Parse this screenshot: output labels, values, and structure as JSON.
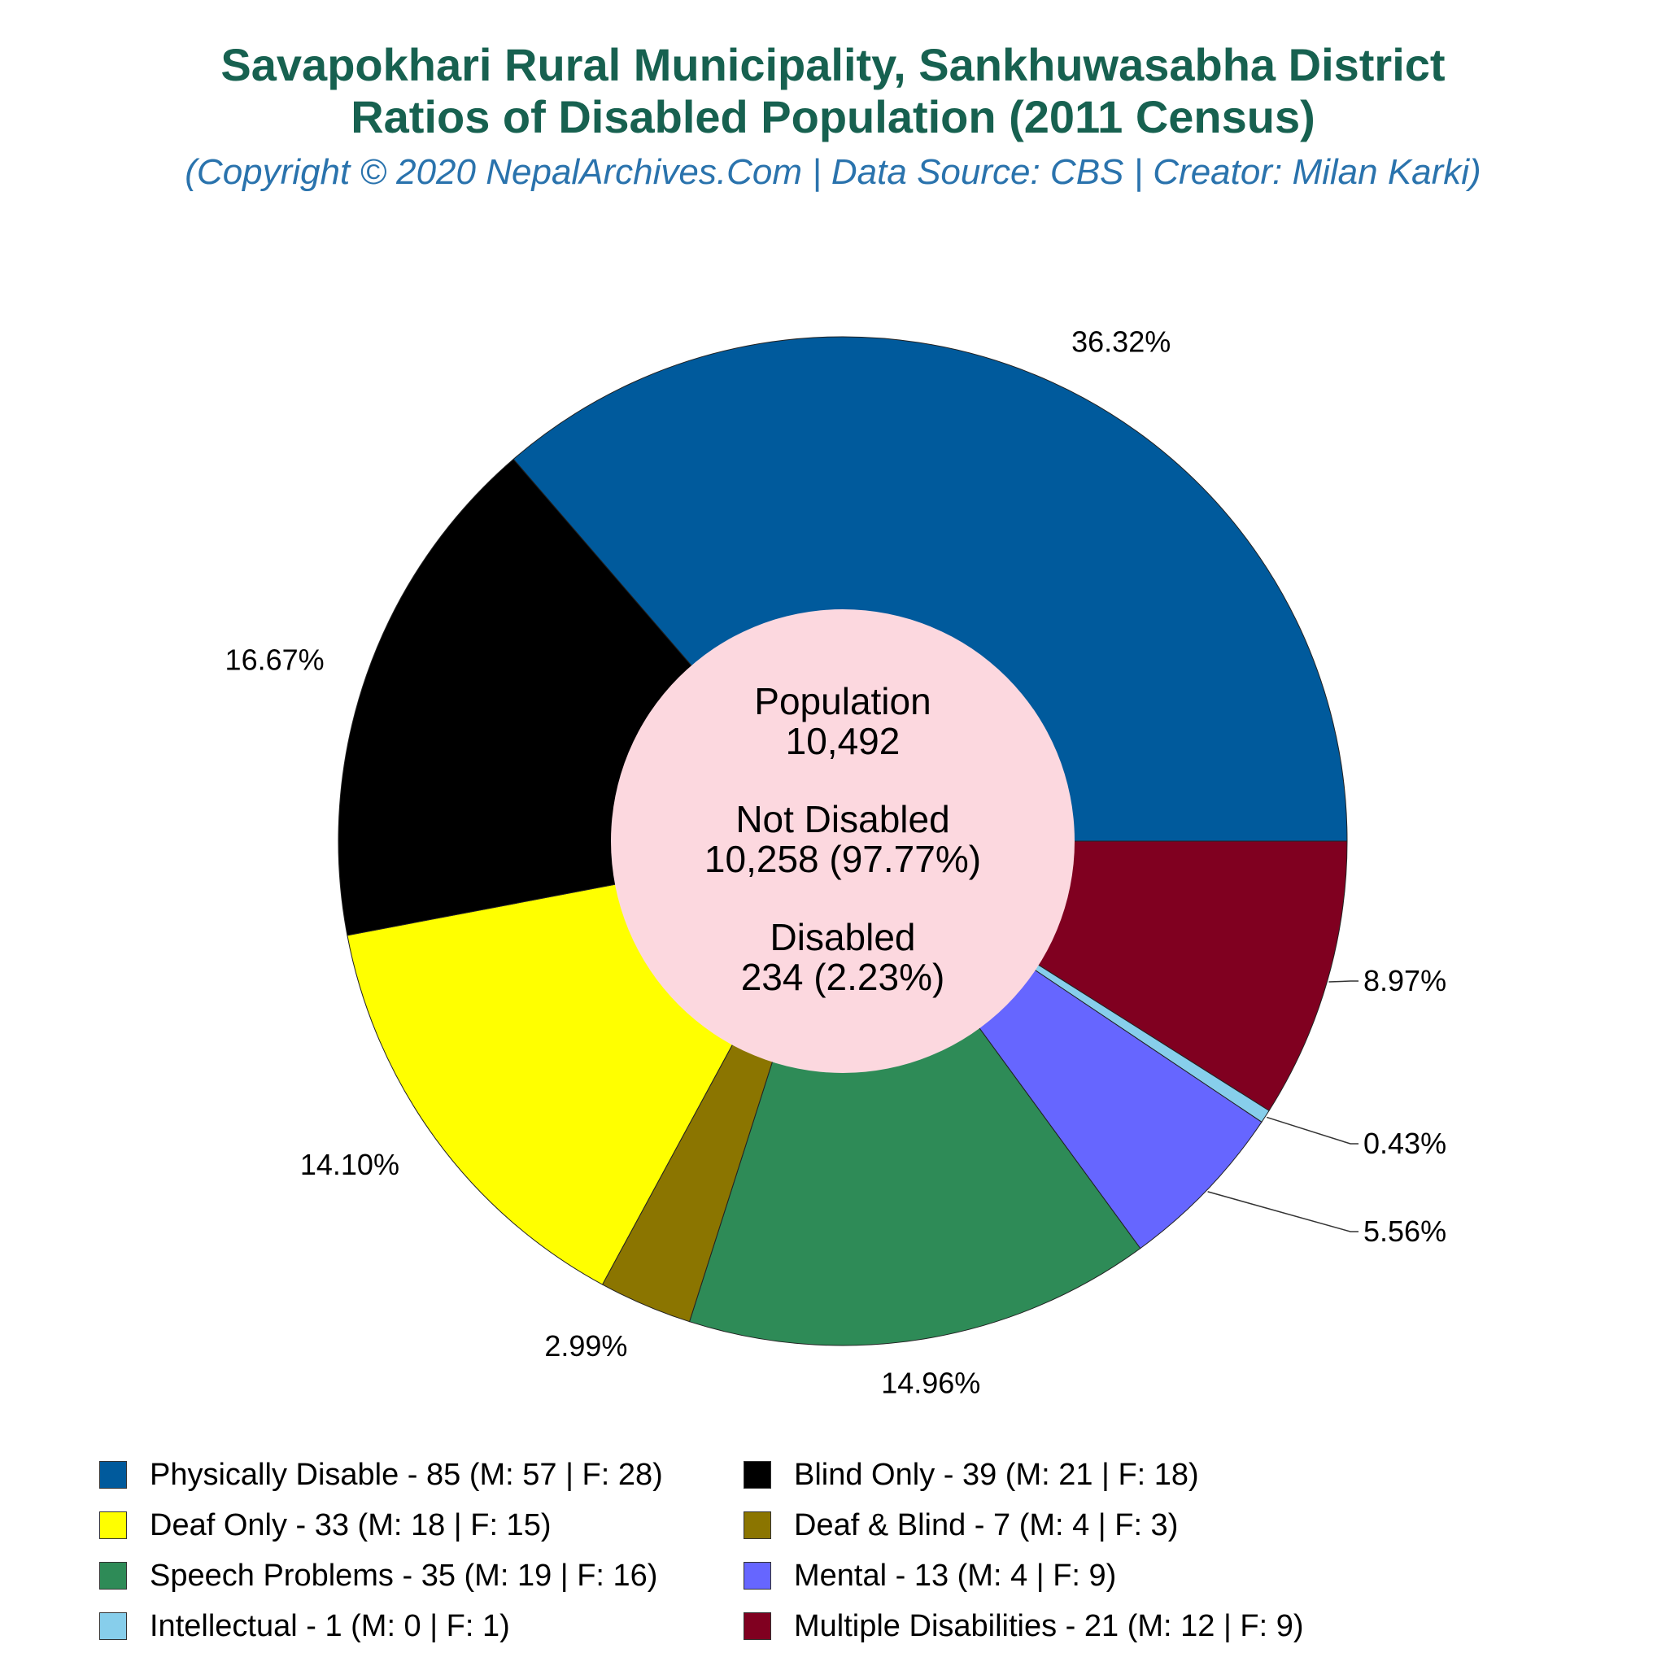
{
  "chart_data": {
    "type": "pie",
    "style": "donut",
    "title": "Savapokhari Rural Municipality, Sankhuwasabha District",
    "subtitle": "Ratios of Disabled Population (2011 Census)",
    "credit": "(Copyright © 2020 NepalArchives.Com | Data Source: CBS | Creator: Milan Karki)",
    "center_text": {
      "population_label": "Population",
      "population_value": "10,492",
      "not_disabled_label": "Not Disabled",
      "not_disabled_value": "10,258 (97.77%)",
      "disabled_label": "Disabled",
      "disabled_value": "234 (2.23%)"
    },
    "center_color": "#fcd8df",
    "legend_position": "bottom",
    "slices": [
      {
        "key": "physically_disable",
        "legend": "Physically Disable - 85 (M: 57 | F: 28)",
        "value": 85,
        "percent_label": "36.32%",
        "color": "#005a9c"
      },
      {
        "key": "multiple_disabilities",
        "legend": "Multiple Disabilities - 21 (M: 12 | F: 9)",
        "value": 21,
        "percent_label": "8.97%",
        "color": "#800020"
      },
      {
        "key": "intellectual",
        "legend": "Intellectual - 1 (M: 0 | F: 1)",
        "value": 1,
        "percent_label": "0.43%",
        "color": "#87ceeb"
      },
      {
        "key": "mental",
        "legend": "Mental - 13 (M: 4 | F: 9)",
        "value": 13,
        "percent_label": "5.56%",
        "color": "#6666ff"
      },
      {
        "key": "speech_problems",
        "legend": "Speech Problems - 35 (M: 19 | F: 16)",
        "value": 35,
        "percent_label": "14.96%",
        "color": "#2e8b57"
      },
      {
        "key": "deaf_blind",
        "legend": "Deaf & Blind - 7 (M: 4 | F: 3)",
        "value": 7,
        "percent_label": "2.99%",
        "color": "#8b7500"
      },
      {
        "key": "deaf_only",
        "legend": "Deaf Only - 33 (M: 18 | F: 15)",
        "value": 33,
        "percent_label": "14.10%",
        "color": "#ffff00"
      },
      {
        "key": "blind_only",
        "legend": "Blind Only - 39 (M: 21 | F: 18)",
        "value": 39,
        "percent_label": "16.67%",
        "color": "#000000"
      }
    ],
    "legend_order": [
      "physically_disable",
      "blind_only",
      "deaf_only",
      "deaf_blind",
      "speech_problems",
      "mental",
      "intellectual",
      "multiple_disabilities"
    ]
  }
}
